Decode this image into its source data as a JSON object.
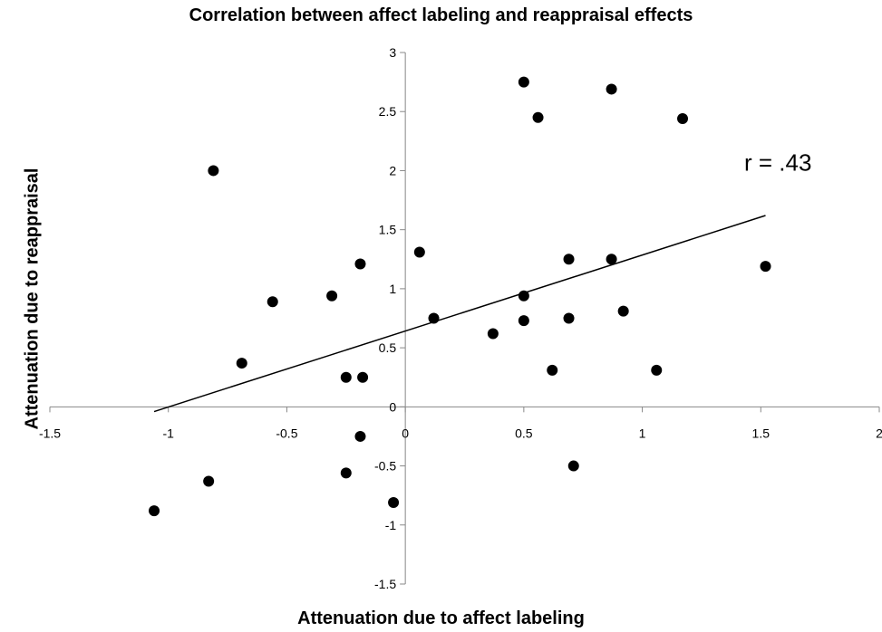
{
  "chart_data": {
    "type": "scatter",
    "title": "Correlation between affect labeling and reappraisal effects",
    "xlabel": "Attenuation due to affect labeling",
    "ylabel": "Attenuation due to reappraisal",
    "xlim": [
      -1.5,
      2
    ],
    "ylim": [
      -1.5,
      3
    ],
    "x_ticks": [
      "-1.5",
      "-1",
      "-0.5",
      "0",
      "0.5",
      "1",
      "1.5",
      "2"
    ],
    "y_ticks": [
      "-1.5",
      "-1",
      "-0.5",
      "0",
      "0.5",
      "1",
      "1.5",
      "2",
      "2.5",
      "3"
    ],
    "grid": false,
    "annotation": "r = .43",
    "points": [
      {
        "x": -0.81,
        "y": 2.0
      },
      {
        "x": 0.5,
        "y": 2.75
      },
      {
        "x": 0.87,
        "y": 2.69
      },
      {
        "x": 0.56,
        "y": 2.45
      },
      {
        "x": 1.17,
        "y": 2.44
      },
      {
        "x": 0.06,
        "y": 1.31
      },
      {
        "x": -0.19,
        "y": 1.21
      },
      {
        "x": 0.69,
        "y": 1.25
      },
      {
        "x": 0.87,
        "y": 1.25
      },
      {
        "x": 1.52,
        "y": 1.19
      },
      {
        "x": -0.56,
        "y": 0.89
      },
      {
        "x": -0.31,
        "y": 0.94
      },
      {
        "x": 0.5,
        "y": 0.94
      },
      {
        "x": 0.12,
        "y": 0.75
      },
      {
        "x": 0.5,
        "y": 0.73
      },
      {
        "x": 0.69,
        "y": 0.75
      },
      {
        "x": 0.92,
        "y": 0.81
      },
      {
        "x": 0.37,
        "y": 0.62
      },
      {
        "x": -0.69,
        "y": 0.37
      },
      {
        "x": -0.25,
        "y": 0.25
      },
      {
        "x": -0.18,
        "y": 0.25
      },
      {
        "x": 0.62,
        "y": 0.31
      },
      {
        "x": 1.06,
        "y": 0.31
      },
      {
        "x": -0.19,
        "y": -0.25
      },
      {
        "x": -0.25,
        "y": -0.56
      },
      {
        "x": -0.83,
        "y": -0.63
      },
      {
        "x": -1.06,
        "y": -0.88
      },
      {
        "x": -0.05,
        "y": -0.81
      },
      {
        "x": 0.71,
        "y": -0.5
      }
    ],
    "trendline": {
      "x": [
        -1.06,
        1.52
      ],
      "y": [
        -0.04,
        1.62
      ]
    }
  }
}
